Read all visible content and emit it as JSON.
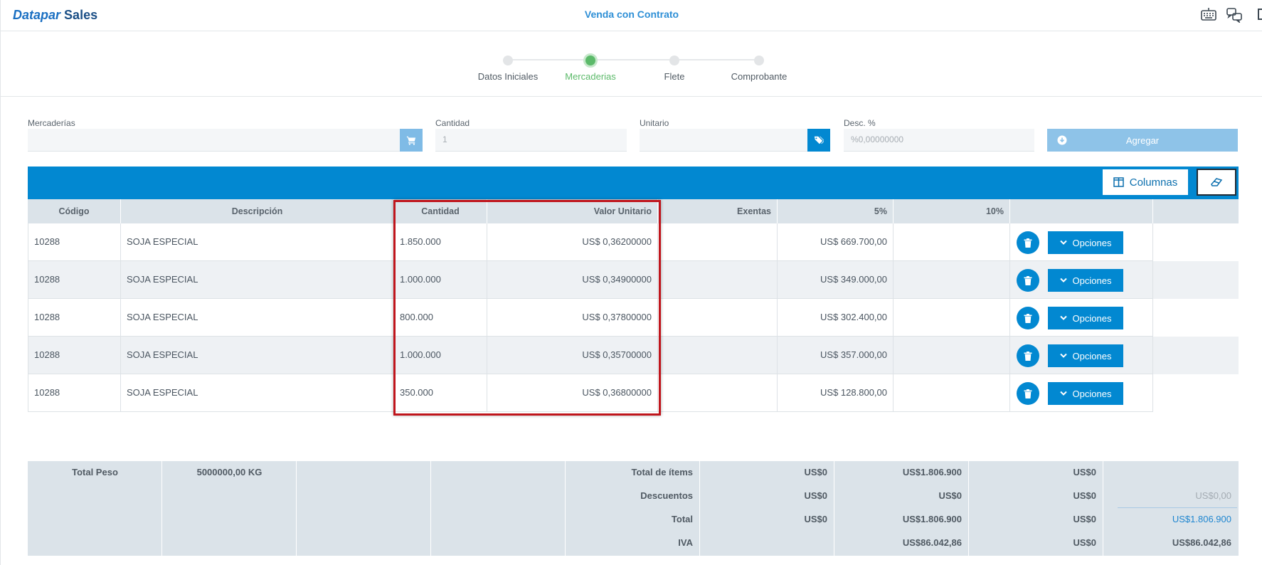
{
  "header": {
    "logo_part1": "Datapar",
    "logo_part2": "Sales",
    "title": "Venda con Contrato",
    "icons": [
      "keyboard-icon",
      "chat-icon"
    ]
  },
  "stepper": {
    "steps": [
      {
        "label": "Datos Iniciales",
        "state": "done"
      },
      {
        "label": "Mercaderias",
        "state": "active"
      },
      {
        "label": "Flete",
        "state": "pending"
      },
      {
        "label": "Comprobante",
        "state": "pending"
      }
    ]
  },
  "form": {
    "mercaderias_label": "Mercaderías",
    "mercaderias_value": "",
    "cantidad_label": "Cantidad",
    "cantidad_placeholder": "1",
    "unitario_label": "Unitario",
    "unitario_value": "",
    "desc_label": "Desc. %",
    "desc_placeholder": "%0,00000000",
    "add_label": "Agregar"
  },
  "toolbar": {
    "columns_label": "Columnas"
  },
  "table": {
    "headers": [
      "Código",
      "Descripción",
      "Cantidad",
      "Valor Unitario",
      "Exentas",
      "5%",
      "10%",
      ""
    ],
    "rows": [
      {
        "codigo": "10288",
        "descripcion": "SOJA ESPECIAL",
        "cantidad": "1.850.000",
        "valor_unitario": "US$ 0,36200000",
        "exentas": "",
        "p5": "US$ 669.700,00",
        "p10": "",
        "options_label": "Opciones"
      },
      {
        "codigo": "10288",
        "descripcion": "SOJA ESPECIAL",
        "cantidad": "1.000.000",
        "valor_unitario": "US$ 0,34900000",
        "exentas": "",
        "p5": "US$ 349.000,00",
        "p10": "",
        "options_label": "Opciones"
      },
      {
        "codigo": "10288",
        "descripcion": "SOJA ESPECIAL",
        "cantidad": "800.000",
        "valor_unitario": "US$ 0,37800000",
        "exentas": "",
        "p5": "US$ 302.400,00",
        "p10": "",
        "options_label": "Opciones"
      },
      {
        "codigo": "10288",
        "descripcion": "SOJA ESPECIAL",
        "cantidad": "1.000.000",
        "valor_unitario": "US$ 0,35700000",
        "exentas": "",
        "p5": "US$ 357.000,00",
        "p10": "",
        "options_label": "Opciones"
      },
      {
        "codigo": "10288",
        "descripcion": "SOJA ESPECIAL",
        "cantidad": "350.000",
        "valor_unitario": "US$ 0,36800000",
        "exentas": "",
        "p5": "US$ 128.800,00",
        "p10": "",
        "options_label": "Opciones"
      }
    ]
  },
  "totals": {
    "peso_label": "Total Peso",
    "peso_value": "5000000,00 KG",
    "rows": [
      {
        "label": "Total de ítems",
        "exentas": "US$0",
        "p5": "US$1.806.900",
        "p10": "US$0",
        "final": ""
      },
      {
        "label": "Descuentos",
        "exentas": "US$0",
        "p5": "US$0",
        "p10": "US$0",
        "final": "US$0,00"
      },
      {
        "label": "Total",
        "exentas": "US$0",
        "p5": "US$1.806.900",
        "p10": "US$0",
        "final": "US$1.806.900"
      },
      {
        "label": "IVA",
        "exentas": "",
        "p5": "US$86.042,86",
        "p10": "US$0",
        "final": "US$86.042,86"
      }
    ]
  },
  "colors": {
    "primary": "#0288d1",
    "active_step": "#5cba6a",
    "highlight": "#c0151c"
  }
}
